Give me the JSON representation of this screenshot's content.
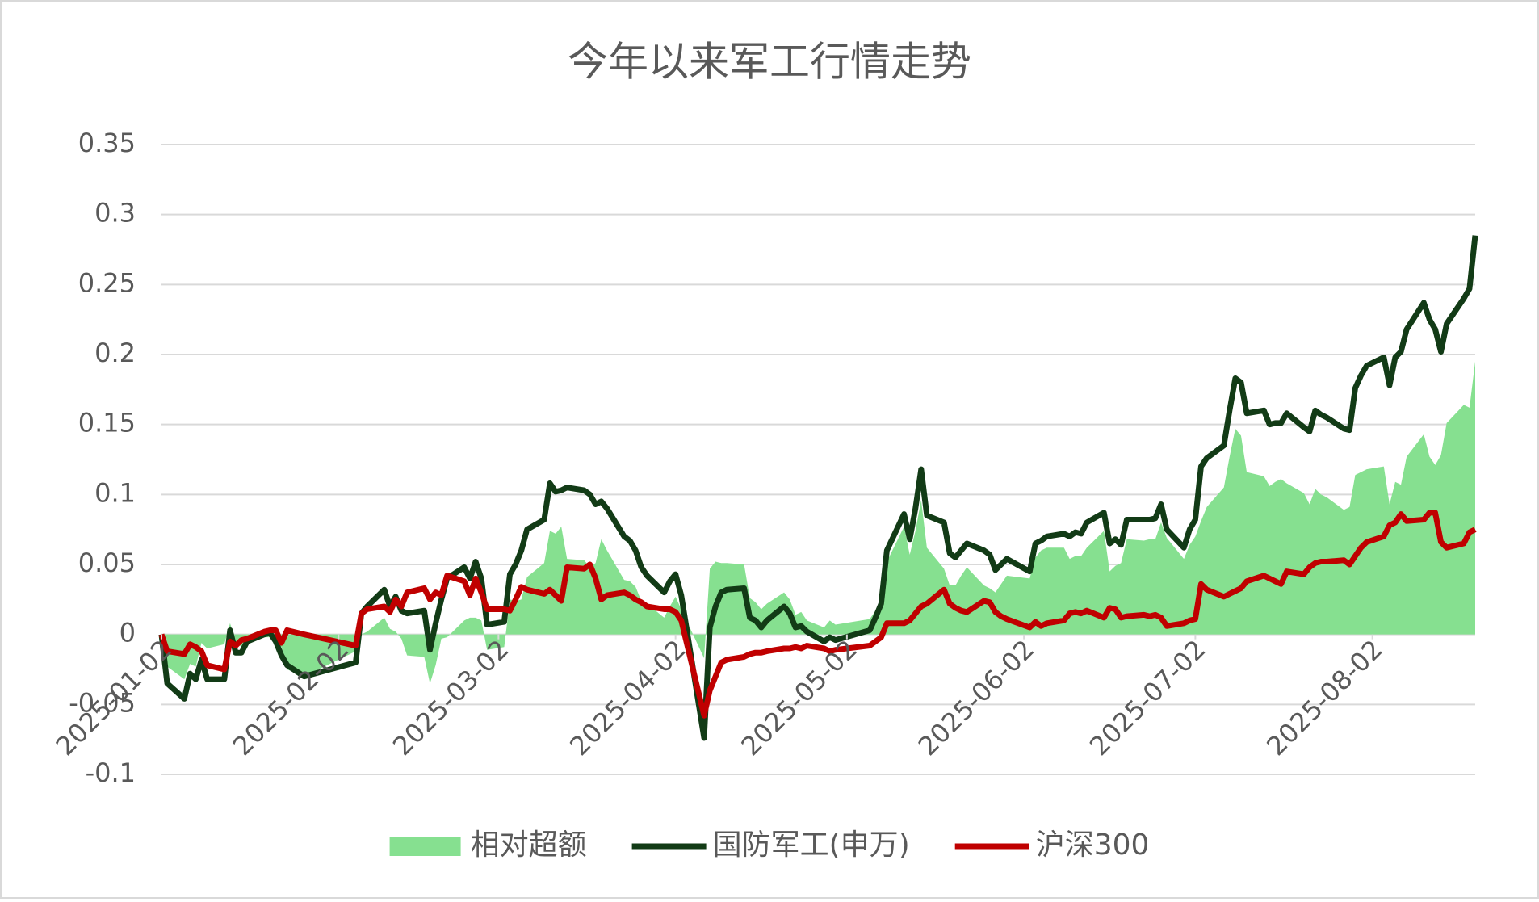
{
  "chart_data": {
    "type": "line",
    "title": "今年以来军工行情走势",
    "x": [
      "2025-01-02",
      "2025-01-03",
      "2025-01-06",
      "2025-01-07",
      "2025-01-08",
      "2025-01-09",
      "2025-01-10",
      "2025-01-13",
      "2025-01-14",
      "2025-01-15",
      "2025-01-16",
      "2025-01-17",
      "2025-01-20",
      "2025-01-21",
      "2025-01-22",
      "2025-01-23",
      "2025-01-24",
      "2025-01-27",
      "2025-02-05",
      "2025-02-06",
      "2025-02-07",
      "2025-02-10",
      "2025-02-11",
      "2025-02-12",
      "2025-02-13",
      "2025-02-14",
      "2025-02-17",
      "2025-02-18",
      "2025-02-19",
      "2025-02-20",
      "2025-02-21",
      "2025-02-24",
      "2025-02-25",
      "2025-02-26",
      "2025-02-27",
      "2025-02-28",
      "2025-03-03",
      "2025-03-04",
      "2025-03-05",
      "2025-03-06",
      "2025-03-07",
      "2025-03-10",
      "2025-03-11",
      "2025-03-12",
      "2025-03-13",
      "2025-03-14",
      "2025-03-17",
      "2025-03-18",
      "2025-03-19",
      "2025-03-20",
      "2025-03-21",
      "2025-03-24",
      "2025-03-25",
      "2025-03-26",
      "2025-03-27",
      "2025-03-28",
      "2025-03-31",
      "2025-04-01",
      "2025-04-02",
      "2025-04-03",
      "2025-04-07",
      "2025-04-08",
      "2025-04-09",
      "2025-04-10",
      "2025-04-11",
      "2025-04-14",
      "2025-04-15",
      "2025-04-16",
      "2025-04-17",
      "2025-04-18",
      "2025-04-21",
      "2025-04-22",
      "2025-04-23",
      "2025-04-24",
      "2025-04-25",
      "2025-04-28",
      "2025-04-29",
      "2025-04-30",
      "2025-05-06",
      "2025-05-07",
      "2025-05-08",
      "2025-05-09",
      "2025-05-12",
      "2025-05-13",
      "2025-05-14",
      "2025-05-15",
      "2025-05-16",
      "2025-05-19",
      "2025-05-20",
      "2025-05-21",
      "2025-05-22",
      "2025-05-23",
      "2025-05-26",
      "2025-05-27",
      "2025-05-28",
      "2025-05-29",
      "2025-05-30",
      "2025-06-03",
      "2025-06-04",
      "2025-06-05",
      "2025-06-06",
      "2025-06-09",
      "2025-06-10",
      "2025-06-11",
      "2025-06-12",
      "2025-06-13",
      "2025-06-16",
      "2025-06-17",
      "2025-06-18",
      "2025-06-19",
      "2025-06-20",
      "2025-06-23",
      "2025-06-24",
      "2025-06-25",
      "2025-06-26",
      "2025-06-27",
      "2025-06-30",
      "2025-07-01",
      "2025-07-02",
      "2025-07-03",
      "2025-07-04",
      "2025-07-07",
      "2025-07-08",
      "2025-07-09",
      "2025-07-10",
      "2025-07-11",
      "2025-07-14",
      "2025-07-15",
      "2025-07-16",
      "2025-07-17",
      "2025-07-18",
      "2025-07-21",
      "2025-07-22",
      "2025-07-23",
      "2025-07-24",
      "2025-07-25",
      "2025-07-28",
      "2025-07-29",
      "2025-07-30",
      "2025-07-31",
      "2025-08-01",
      "2025-08-04",
      "2025-08-05",
      "2025-08-06",
      "2025-08-07",
      "2025-08-08",
      "2025-08-11",
      "2025-08-12",
      "2025-08-13",
      "2025-08-14",
      "2025-08-15",
      "2025-08-18",
      "2025-08-19",
      "2025-08-20"
    ],
    "series": [
      {
        "name": "相对超额",
        "type": "area",
        "color": "#86e090",
        "values": [
          0,
          -0.023,
          -0.032,
          -0.021,
          -0.023,
          -0.006,
          -0.01,
          -0.007,
          0.008,
          -0.005,
          -0.009,
          -0.002,
          -0.002,
          -0.002,
          -0.008,
          -0.009,
          -0.025,
          -0.03,
          -0.012,
          0,
          0.002,
          0.012,
          0.004,
          0.002,
          -0.003,
          -0.015,
          -0.016,
          -0.035,
          -0.022,
          -0.003,
          -0.002,
          0.01,
          0.012,
          0.012,
          0.01,
          -0.011,
          -0.009,
          0.025,
          0.024,
          0.025,
          0.041,
          0.051,
          0.074,
          0.072,
          0.077,
          0.054,
          0.053,
          0.048,
          0.051,
          0.068,
          0.06,
          0.039,
          0.038,
          0.034,
          0.024,
          0.022,
          0.012,
          0.02,
          0.027,
          0.018,
          -0.017,
          0.047,
          0.052,
          0.051,
          0.051,
          0.05,
          0.026,
          0.023,
          0.018,
          0.022,
          0.03,
          0.025,
          0.014,
          0.016,
          0.01,
          0.005,
          0.01,
          0.007,
          0.011,
          0.017,
          0.024,
          0.052,
          0.077,
          0.057,
          0.074,
          0.096,
          0.062,
          0.047,
          0.035,
          0.035,
          0.042,
          0.048,
          0.035,
          0.033,
          0.03,
          0.036,
          0.042,
          0.04,
          0.055,
          0.06,
          0.062,
          0.062,
          0.054,
          0.056,
          0.056,
          0.062,
          0.074,
          0.045,
          0.049,
          0.051,
          0.068,
          0.067,
          0.068,
          0.068,
          0.08,
          0.069,
          0.054,
          0.064,
          0.07,
          0.081,
          0.091,
          0.105,
          0.127,
          0.147,
          0.142,
          0.116,
          0.113,
          0.106,
          0.109,
          0.111,
          0.108,
          0.101,
          0.093,
          0.104,
          0.1,
          0.098,
          0.089,
          0.091,
          0.114,
          0.116,
          0.118,
          0.12,
          0.093,
          0.109,
          0.107,
          0.127,
          0.143,
          0.127,
          0.121,
          0.128,
          0.151,
          0.164,
          0.162,
          0.195
        ]
      },
      {
        "name": "国防军工(申万)",
        "type": "line",
        "color": "#123b16",
        "values": [
          0,
          -0.035,
          -0.046,
          -0.028,
          -0.032,
          -0.018,
          -0.032,
          -0.032,
          0.003,
          -0.013,
          -0.013,
          -0.005,
          0.0,
          0.001,
          -0.005,
          -0.015,
          -0.022,
          -0.03,
          -0.02,
          0.015,
          0.02,
          0.032,
          0.02,
          0.027,
          0.017,
          0.015,
          0.017,
          -0.011,
          0.008,
          0.025,
          0.04,
          0.048,
          0.04,
          0.052,
          0.04,
          0.007,
          0.009,
          0.043,
          0.05,
          0.06,
          0.075,
          0.082,
          0.108,
          0.102,
          0.103,
          0.105,
          0.103,
          0.1,
          0.093,
          0.095,
          0.09,
          0.07,
          0.067,
          0.06,
          0.048,
          0.042,
          0.03,
          0.038,
          0.043,
          0.028,
          -0.074,
          0.005,
          0.02,
          0.03,
          0.032,
          0.033,
          0.012,
          0.01,
          0.005,
          0.01,
          0.02,
          0.015,
          0.005,
          0.006,
          0.002,
          -0.005,
          -0.002,
          -0.004,
          0.003,
          0.012,
          0.022,
          0.06,
          0.086,
          0.068,
          0.09,
          0.118,
          0.085,
          0.08,
          0.058,
          0.055,
          0.06,
          0.065,
          0.06,
          0.057,
          0.046,
          0.05,
          0.054,
          0.045,
          0.065,
          0.067,
          0.07,
          0.072,
          0.07,
          0.073,
          0.072,
          0.08,
          0.087,
          0.065,
          0.068,
          0.064,
          0.082,
          0.082,
          0.082,
          0.083,
          0.093,
          0.075,
          0.062,
          0.075,
          0.082,
          0.12,
          0.126,
          0.135,
          0.16,
          0.183,
          0.18,
          0.158,
          0.16,
          0.15,
          0.151,
          0.151,
          0.158,
          0.148,
          0.145,
          0.16,
          0.157,
          0.155,
          0.147,
          0.146,
          0.176,
          0.185,
          0.192,
          0.198,
          0.178,
          0.198,
          0.202,
          0.218,
          0.237,
          0.225,
          0.218,
          0.202,
          0.222,
          0.24,
          0.247,
          0.285
        ]
      },
      {
        "name": "沪深300",
        "type": "line",
        "color": "#c00000",
        "values": [
          0,
          -0.012,
          -0.014,
          -0.007,
          -0.009,
          -0.012,
          -0.022,
          -0.025,
          -0.005,
          -0.008,
          -0.004,
          -0.003,
          0.002,
          0.003,
          0.003,
          -0.006,
          0.003,
          0.0,
          -0.008,
          0.015,
          0.018,
          0.02,
          0.016,
          0.025,
          0.02,
          0.03,
          0.033,
          0.025,
          0.03,
          0.028,
          0.042,
          0.038,
          0.028,
          0.04,
          0.03,
          0.018,
          0.018,
          0.017,
          0.025,
          0.034,
          0.032,
          0.029,
          0.032,
          0.028,
          0.024,
          0.048,
          0.047,
          0.05,
          0.04,
          0.025,
          0.028,
          0.03,
          0.028,
          0.025,
          0.023,
          0.02,
          0.018,
          0.018,
          0.016,
          0.01,
          -0.058,
          -0.04,
          -0.03,
          -0.02,
          -0.018,
          -0.016,
          -0.014,
          -0.013,
          -0.013,
          -0.012,
          -0.01,
          -0.01,
          -0.009,
          -0.01,
          -0.008,
          -0.01,
          -0.012,
          -0.011,
          -0.008,
          -0.005,
          -0.002,
          0.008,
          0.008,
          0.01,
          0.015,
          0.02,
          0.022,
          0.032,
          0.022,
          0.019,
          0.017,
          0.016,
          0.024,
          0.023,
          0.016,
          0.013,
          0.011,
          0.005,
          0.009,
          0.006,
          0.008,
          0.01,
          0.015,
          0.016,
          0.015,
          0.017,
          0.012,
          0.019,
          0.018,
          0.012,
          0.013,
          0.014,
          0.013,
          0.014,
          0.012,
          0.006,
          0.008,
          0.01,
          0.011,
          0.036,
          0.032,
          0.027,
          0.029,
          0.031,
          0.033,
          0.038,
          0.042,
          0.04,
          0.038,
          0.036,
          0.045,
          0.043,
          0.048,
          0.051,
          0.052,
          0.052,
          0.053,
          0.05,
          0.056,
          0.062,
          0.066,
          0.07,
          0.078,
          0.08,
          0.086,
          0.081,
          0.082,
          0.087,
          0.087,
          0.066,
          0.062,
          0.065,
          0.073,
          0.075
        ]
      }
    ],
    "xlim": [
      "2025-01-02",
      "2025-08-20"
    ],
    "xticks": [
      "2025-01-02",
      "2025-02-02",
      "2025-03-02",
      "2025-04-02",
      "2025-05-02",
      "2025-06-02",
      "2025-07-02",
      "2025-08-02"
    ],
    "ylim": [
      -0.1,
      0.35
    ],
    "yticks": [
      0.35,
      0.3,
      0.25,
      0.2,
      0.15,
      0.1,
      0.05,
      0,
      -0.05,
      -0.1
    ],
    "grid": true,
    "legend": "bottom"
  }
}
